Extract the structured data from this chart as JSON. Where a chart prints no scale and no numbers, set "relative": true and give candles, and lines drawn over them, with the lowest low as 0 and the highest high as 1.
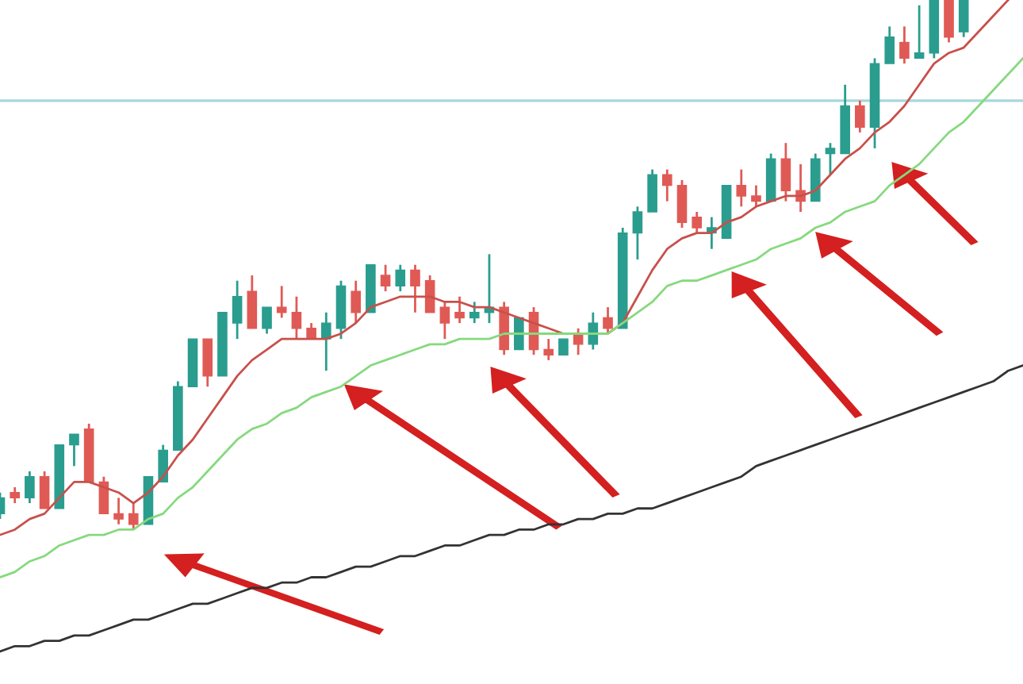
{
  "chart_data": {
    "type": "candlestick",
    "relative": true,
    "categories": [
      null,
      null,
      null,
      null,
      null,
      null,
      null,
      null,
      null,
      null,
      null,
      null,
      null,
      null,
      null,
      null,
      null,
      null,
      null,
      null,
      null,
      null,
      null,
      null,
      null,
      null,
      null,
      null,
      null,
      null,
      null,
      null,
      null,
      null,
      null,
      null,
      null,
      null,
      null,
      null,
      null,
      null,
      null,
      null,
      null,
      null,
      null,
      null,
      null,
      null,
      null,
      null,
      null,
      null,
      null,
      null,
      null,
      null,
      null,
      null,
      null,
      null,
      null,
      null,
      null,
      null,
      null,
      null,
      null,
      null
    ],
    "ohlc": [
      [
        0.03,
        0.07,
        0.02,
        0.06
      ],
      [
        0.07,
        0.08,
        0.05,
        0.06
      ],
      [
        0.06,
        0.11,
        0.05,
        0.1
      ],
      [
        0.1,
        0.11,
        0.04,
        0.04
      ],
      [
        0.04,
        0.16,
        0.04,
        0.16
      ],
      [
        0.16,
        0.18,
        0.12,
        0.18
      ],
      [
        0.19,
        0.2,
        0.09,
        0.09
      ],
      [
        0.09,
        0.1,
        0.03,
        0.03
      ],
      [
        0.03,
        0.06,
        0.01,
        0.02
      ],
      [
        0.03,
        0.05,
        0.0,
        0.01
      ],
      [
        0.01,
        0.1,
        0.01,
        0.1
      ],
      [
        0.09,
        0.16,
        0.09,
        0.15
      ],
      [
        0.15,
        0.28,
        0.15,
        0.27
      ],
      [
        0.27,
        0.36,
        0.27,
        0.36
      ],
      [
        0.36,
        0.36,
        0.27,
        0.29
      ],
      [
        0.29,
        0.41,
        0.29,
        0.41
      ],
      [
        0.39,
        0.47,
        0.36,
        0.44
      ],
      [
        0.45,
        0.48,
        0.38,
        0.38
      ],
      [
        0.38,
        0.42,
        0.37,
        0.42
      ],
      [
        0.42,
        0.46,
        0.4,
        0.41
      ],
      [
        0.41,
        0.44,
        0.36,
        0.38
      ],
      [
        0.38,
        0.39,
        0.36,
        0.36
      ],
      [
        0.36,
        0.41,
        0.3,
        0.39
      ],
      [
        0.38,
        0.47,
        0.36,
        0.46
      ],
      [
        0.45,
        0.47,
        0.39,
        0.41
      ],
      [
        0.41,
        0.5,
        0.41,
        0.5
      ],
      [
        0.48,
        0.5,
        0.45,
        0.46
      ],
      [
        0.46,
        0.5,
        0.45,
        0.49
      ],
      [
        0.49,
        0.5,
        0.41,
        0.46
      ],
      [
        0.47,
        0.48,
        0.41,
        0.41
      ],
      [
        0.42,
        0.43,
        0.36,
        0.39
      ],
      [
        0.41,
        0.44,
        0.39,
        0.4
      ],
      [
        0.4,
        0.43,
        0.39,
        0.41
      ],
      [
        0.41,
        0.52,
        0.39,
        0.42
      ],
      [
        0.42,
        0.43,
        0.33,
        0.34
      ],
      [
        0.34,
        0.4,
        0.34,
        0.4
      ],
      [
        0.41,
        0.42,
        0.33,
        0.34
      ],
      [
        0.34,
        0.36,
        0.32,
        0.33
      ],
      [
        0.33,
        0.36,
        0.33,
        0.36
      ],
      [
        0.37,
        0.38,
        0.33,
        0.35
      ],
      [
        0.35,
        0.41,
        0.34,
        0.39
      ],
      [
        0.4,
        0.42,
        0.37,
        0.38
      ],
      [
        0.38,
        0.57,
        0.38,
        0.56
      ],
      [
        0.56,
        0.61,
        0.51,
        0.6
      ],
      [
        0.6,
        0.68,
        0.6,
        0.67
      ],
      [
        0.67,
        0.68,
        0.62,
        0.65
      ],
      [
        0.65,
        0.66,
        0.57,
        0.58
      ],
      [
        0.59,
        0.6,
        0.56,
        0.57
      ],
      [
        0.56,
        0.59,
        0.53,
        0.57
      ],
      [
        0.55,
        0.65,
        0.55,
        0.65
      ],
      [
        0.65,
        0.68,
        0.61,
        0.63
      ],
      [
        0.63,
        0.65,
        0.61,
        0.62
      ],
      [
        0.62,
        0.71,
        0.62,
        0.7
      ],
      [
        0.7,
        0.73,
        0.62,
        0.64
      ],
      [
        0.64,
        0.69,
        0.6,
        0.62
      ],
      [
        0.62,
        0.71,
        0.62,
        0.7
      ],
      [
        0.71,
        0.73,
        0.67,
        0.72
      ],
      [
        0.71,
        0.84,
        0.71,
        0.8
      ],
      [
        0.8,
        0.81,
        0.75,
        0.76
      ],
      [
        0.76,
        0.89,
        0.72,
        0.88
      ],
      [
        0.88,
        0.95,
        0.88,
        0.93
      ],
      [
        0.92,
        0.95,
        0.88,
        0.89
      ],
      [
        0.89,
        0.99,
        0.89,
        0.9
      ],
      [
        0.9,
        1.0,
        0.89,
        1.0
      ],
      [
        1.0,
        1.0,
        0.92,
        0.93
      ],
      [
        0.94,
        1.0,
        0.93,
        1.0
      ],
      null,
      null,
      null,
      null
    ],
    "colors": [
      "#2a9d8f",
      "#e05a55",
      "#2a9d8f",
      "#e05a55",
      "#2a9d8f",
      "#2a9d8f",
      "#e05a55",
      "#e05a55",
      "#e05a55",
      "#e05a55",
      "#2a9d8f",
      "#2a9d8f",
      "#2a9d8f",
      "#2a9d8f",
      "#e05a55",
      "#2a9d8f",
      "#2a9d8f",
      "#e05a55",
      "#2a9d8f",
      "#e05a55",
      "#e05a55",
      "#e05a55",
      "#2a9d8f",
      "#2a9d8f",
      "#e05a55",
      "#2a9d8f",
      "#e05a55",
      "#2a9d8f",
      "#e05a55",
      "#e05a55",
      "#e05a55",
      "#e05a55",
      "#2a9d8f",
      "#2a9d8f",
      "#e05a55",
      "#2a9d8f",
      "#e05a55",
      "#e05a55",
      "#2a9d8f",
      "#e05a55",
      "#2a9d8f",
      "#e05a55",
      "#2a9d8f",
      "#2a9d8f",
      "#2a9d8f",
      "#e05a55",
      "#e05a55",
      "#e05a55",
      "#2a9d8f",
      "#2a9d8f",
      "#e05a55",
      "#e05a55",
      "#2a9d8f",
      "#e05a55",
      "#e05a55",
      "#2a9d8f",
      "#2a9d8f",
      "#2a9d8f",
      "#e05a55",
      "#2a9d8f",
      "#2a9d8f",
      "#e05a55",
      "#2a9d8f",
      "#2a9d8f",
      "#e05a55",
      "#2a9d8f",
      null,
      null,
      null,
      null
    ],
    "series": [
      {
        "type": "line",
        "color": "#c8504b",
        "values": [
          -0.01,
          0.0,
          0.02,
          0.03,
          0.06,
          0.09,
          0.09,
          0.08,
          0.07,
          0.05,
          0.07,
          0.1,
          0.14,
          0.17,
          0.21,
          0.25,
          0.29,
          0.32,
          0.34,
          0.36,
          0.36,
          0.36,
          0.36,
          0.37,
          0.39,
          0.42,
          0.43,
          0.44,
          0.44,
          0.44,
          0.43,
          0.43,
          0.42,
          0.42,
          0.41,
          0.4,
          0.39,
          0.38,
          0.37,
          0.37,
          0.37,
          0.37,
          0.39,
          0.44,
          0.49,
          0.53,
          0.55,
          0.56,
          0.56,
          0.58,
          0.59,
          0.61,
          0.62,
          0.63,
          0.63,
          0.64,
          0.67,
          0.7,
          0.72,
          0.75,
          0.77,
          0.8,
          0.84,
          0.88,
          0.9,
          0.91,
          0.94,
          0.97,
          1.0,
          null
        ]
      },
      {
        "type": "line",
        "color": "#86d97e",
        "values": [
          -0.09,
          -0.08,
          -0.06,
          -0.05,
          -0.03,
          -0.02,
          -0.01,
          -0.01,
          0.0,
          0.0,
          0.02,
          0.03,
          0.06,
          0.08,
          0.11,
          0.14,
          0.17,
          0.19,
          0.2,
          0.22,
          0.23,
          0.25,
          0.26,
          0.27,
          0.29,
          0.31,
          0.32,
          0.33,
          0.34,
          0.35,
          0.35,
          0.36,
          0.36,
          0.36,
          0.37,
          0.37,
          0.37,
          0.37,
          0.37,
          0.37,
          0.37,
          0.37,
          0.39,
          0.41,
          0.43,
          0.46,
          0.47,
          0.47,
          0.48,
          0.49,
          0.5,
          0.51,
          0.53,
          0.54,
          0.55,
          0.57,
          0.58,
          0.6,
          0.61,
          0.62,
          0.65,
          0.67,
          0.69,
          0.72,
          0.75,
          0.77,
          0.8,
          0.83,
          0.86,
          0.89
        ]
      },
      {
        "type": "line",
        "color": "#333333",
        "values": [
          -0.23,
          -0.22,
          -0.22,
          -0.21,
          -0.21,
          -0.2,
          -0.2,
          -0.19,
          -0.18,
          -0.17,
          -0.17,
          -0.16,
          -0.15,
          -0.14,
          -0.14,
          -0.13,
          -0.12,
          -0.11,
          -0.11,
          -0.1,
          -0.1,
          -0.09,
          -0.09,
          -0.08,
          -0.07,
          -0.07,
          -0.06,
          -0.05,
          -0.05,
          -0.04,
          -0.03,
          -0.03,
          -0.02,
          -0.01,
          -0.01,
          0.0,
          0.0,
          0.01,
          0.01,
          0.02,
          0.02,
          0.03,
          0.03,
          0.04,
          0.04,
          0.05,
          0.06,
          0.07,
          0.08,
          0.09,
          0.1,
          0.12,
          0.13,
          0.14,
          0.15,
          0.16,
          0.17,
          0.18,
          0.19,
          0.2,
          0.21,
          0.22,
          0.23,
          0.24,
          0.25,
          0.26,
          0.27,
          0.28,
          0.3,
          0.31
        ]
      }
    ],
    "ref_lines": [
      {
        "axis": "y",
        "value": 0.81,
        "color": "#a6d8dc"
      }
    ]
  }
}
